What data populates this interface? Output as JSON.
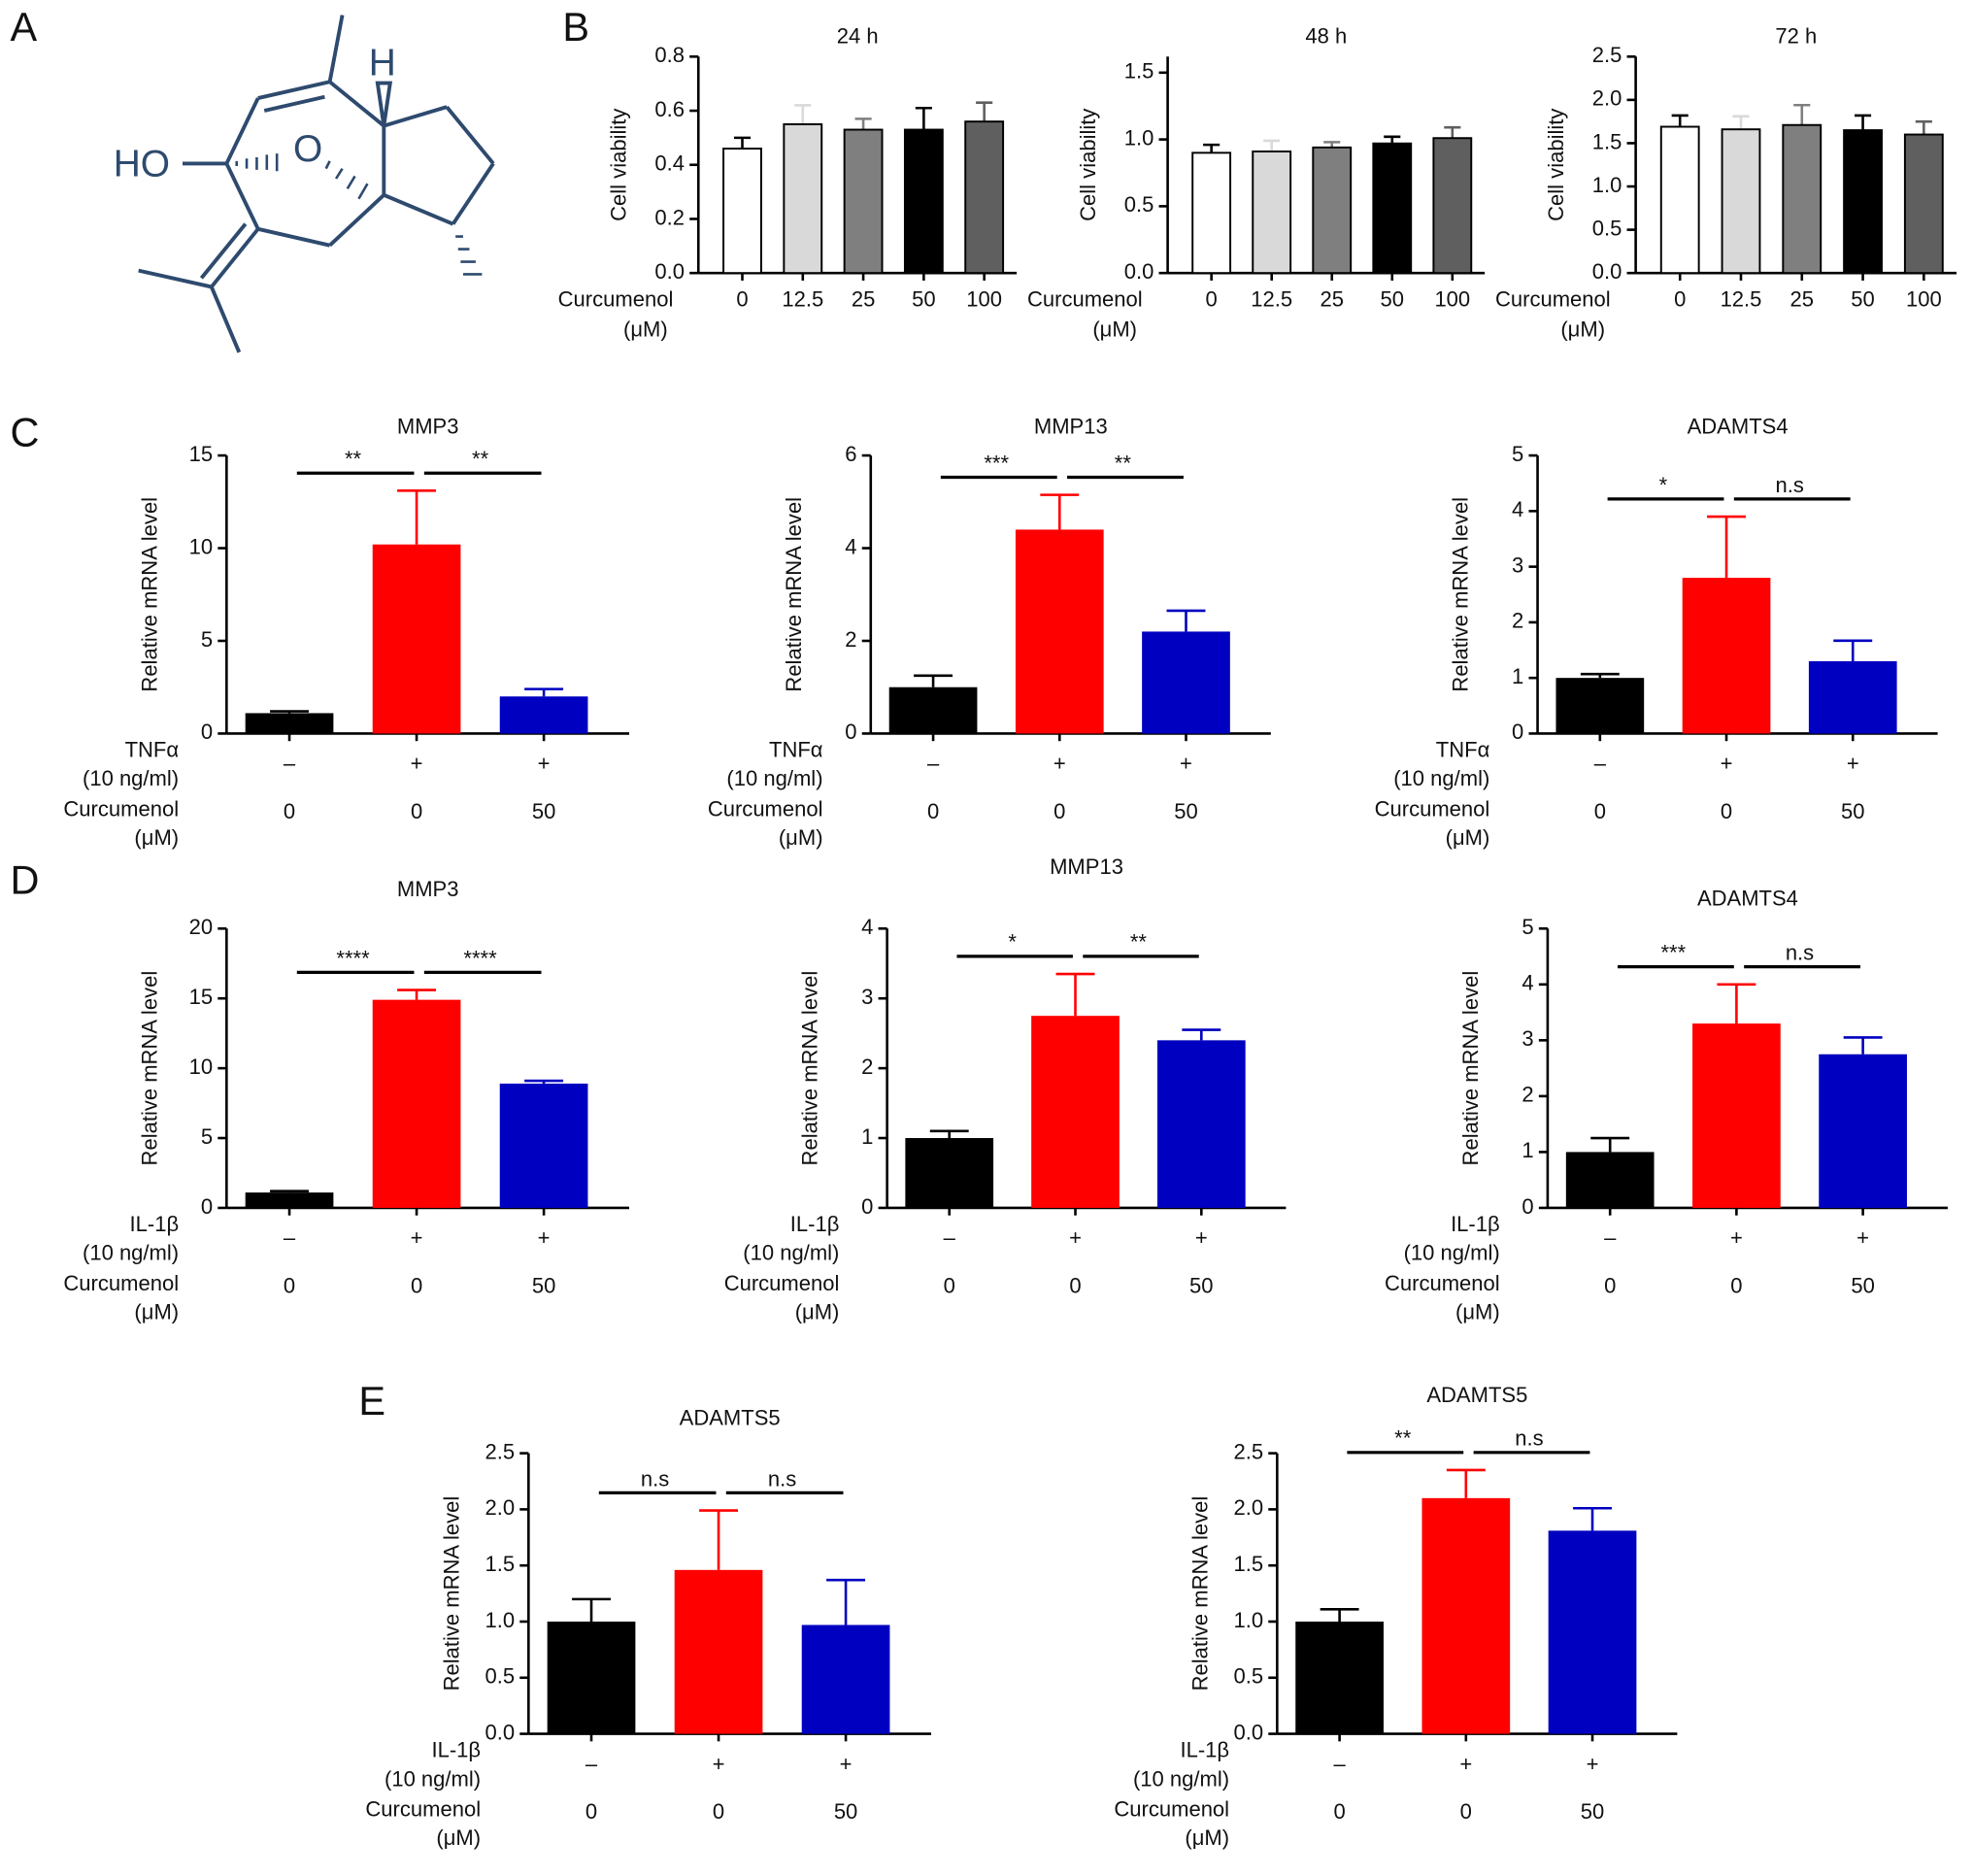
{
  "panel_labels": [
    "A",
    "B",
    "C",
    "D",
    "E"
  ],
  "structure": {
    "labels": [
      "HO",
      "O",
      "H"
    ]
  },
  "chart_data": [
    {
      "type": "bar",
      "title": "24 h",
      "ylabel": "Cell viability",
      "xlabel": [
        "Curcumenol",
        "(μM)"
      ],
      "categories": [
        "0",
        "12.5",
        "25",
        "50",
        "100"
      ],
      "values": [
        0.46,
        0.55,
        0.53,
        0.53,
        0.56
      ],
      "errors": [
        0.04,
        0.07,
        0.04,
        0.08,
        0.07
      ],
      "colors": [
        "#ffffff",
        "#d9d9d9",
        "#7f7f7f",
        "#000000",
        "#5f5f5f"
      ],
      "bar_outline": true,
      "ylim": [
        0,
        0.8
      ],
      "yticks": [
        {
          "value": 0,
          "label": "0.0"
        },
        0.2,
        0.4,
        0.6,
        0.8
      ]
    },
    {
      "type": "bar",
      "title": "48 h",
      "ylabel": "Cell viability",
      "xlabel": [
        "Curcumenol",
        "(μM)"
      ],
      "categories": [
        "0",
        "12.5",
        "25",
        "50",
        "100"
      ],
      "values": [
        0.9,
        0.91,
        0.94,
        0.97,
        1.01
      ],
      "errors": [
        0.06,
        0.08,
        0.04,
        0.05,
        0.08
      ],
      "colors": [
        "#ffffff",
        "#d9d9d9",
        "#7f7f7f",
        "#000000",
        "#5f5f5f"
      ],
      "bar_outline": true,
      "ylim": [
        0,
        1.62
      ],
      "yticks": [
        {
          "value": 0,
          "label": "0.0"
        },
        0.5,
        {
          "value": 1,
          "label": "1.0"
        },
        1.5
      ]
    },
    {
      "type": "bar",
      "title": "72 h",
      "ylabel": "Cell viability",
      "xlabel": [
        "Curcumenol",
        "(μM)"
      ],
      "categories": [
        "0",
        "12.5",
        "25",
        "50",
        "100"
      ],
      "values": [
        1.69,
        1.66,
        1.71,
        1.65,
        1.6
      ],
      "errors": [
        0.13,
        0.15,
        0.23,
        0.17,
        0.15
      ],
      "colors": [
        "#ffffff",
        "#d9d9d9",
        "#7f7f7f",
        "#000000",
        "#5f5f5f"
      ],
      "bar_outline": true,
      "ylim": [
        0,
        2.5
      ],
      "yticks": [
        {
          "value": 0,
          "label": "0.0"
        },
        0.5,
        {
          "value": 1,
          "label": "1.0"
        },
        1.5,
        {
          "value": 2,
          "label": "2.0"
        },
        2.5
      ]
    },
    {
      "type": "bar",
      "title": "MMP3",
      "ylabel": "Relative mRNA level",
      "row_labels": [
        [
          "TNFα",
          "(10 ng/ml)"
        ],
        [
          "Curcumenol",
          "(μM)"
        ]
      ],
      "rows": [
        [
          "–",
          "+",
          "+"
        ],
        [
          "0",
          "0",
          "50"
        ]
      ],
      "values": [
        1.1,
        10.2,
        2.0
      ],
      "errors": [
        0.1,
        2.9,
        0.4
      ],
      "colors": [
        "#000000",
        "#ff0000",
        "#0000c0"
      ],
      "ylim": [
        0,
        15
      ],
      "yticks": [
        0,
        5,
        10,
        15
      ],
      "annotations": [
        {
          "between": [
            0,
            1
          ],
          "text": "**"
        },
        {
          "between": [
            1,
            2
          ],
          "text": "**"
        }
      ]
    },
    {
      "type": "bar",
      "title": "MMP13",
      "ylabel": "Relative mRNA level",
      "row_labels": [
        [
          "TNFα",
          "(10 ng/ml)"
        ],
        [
          "Curcumenol",
          "(μM)"
        ]
      ],
      "rows": [
        [
          "–",
          "+",
          "+"
        ],
        [
          "0",
          "0",
          "50"
        ]
      ],
      "values": [
        1.0,
        4.4,
        2.2
      ],
      "errors": [
        0.25,
        0.75,
        0.45
      ],
      "colors": [
        "#000000",
        "#ff0000",
        "#0000c0"
      ],
      "ylim": [
        0,
        6
      ],
      "yticks": [
        0,
        2,
        4,
        6
      ],
      "annotations": [
        {
          "between": [
            0,
            1
          ],
          "text": "***"
        },
        {
          "between": [
            1,
            2
          ],
          "text": "**"
        }
      ]
    },
    {
      "type": "bar",
      "title": "ADAMTS4",
      "ylabel": "Relative mRNA level",
      "row_labels": [
        [
          "TNFα",
          "(10 ng/ml)"
        ],
        [
          "Curcumenol",
          "(μM)"
        ]
      ],
      "rows": [
        [
          "–",
          "+",
          "+"
        ],
        [
          "0",
          "0",
          "50"
        ]
      ],
      "values": [
        1.0,
        2.8,
        1.3
      ],
      "errors": [
        0.07,
        1.1,
        0.37
      ],
      "colors": [
        "#000000",
        "#ff0000",
        "#0000c0"
      ],
      "ylim": [
        0,
        5
      ],
      "yticks": [
        0,
        1,
        2,
        3,
        4,
        5
      ],
      "annotations": [
        {
          "between": [
            0,
            1
          ],
          "text": "*"
        },
        {
          "between": [
            1,
            2
          ],
          "text": "n.s"
        }
      ]
    },
    {
      "type": "bar",
      "title": "MMP3",
      "ylabel": "Relative mRNA level",
      "row_labels": [
        [
          "IL-1β",
          "(10 ng/ml)"
        ],
        [
          "Curcumenol",
          "(μM)"
        ]
      ],
      "rows": [
        [
          "–",
          "+",
          "+"
        ],
        [
          "0",
          "0",
          "50"
        ]
      ],
      "values": [
        1.1,
        14.9,
        8.9
      ],
      "errors": [
        0.1,
        0.7,
        0.2
      ],
      "colors": [
        "#000000",
        "#ff0000",
        "#0000c0"
      ],
      "ylim": [
        0,
        20
      ],
      "yticks": [
        0,
        5,
        10,
        15,
        20
      ],
      "annotations": [
        {
          "between": [
            0,
            1
          ],
          "text": "****"
        },
        {
          "between": [
            1,
            2
          ],
          "text": "****"
        }
      ]
    },
    {
      "type": "bar",
      "title": "MMP13",
      "ylabel": "Relative mRNA level",
      "row_labels": [
        [
          "IL-1β",
          "(10 ng/ml)"
        ],
        [
          "Curcumenol",
          "(μM)"
        ]
      ],
      "rows": [
        [
          "–",
          "+",
          "+"
        ],
        [
          "0",
          "0",
          "50"
        ]
      ],
      "values": [
        1.0,
        2.75,
        2.4
      ],
      "errors": [
        0.1,
        0.6,
        0.15
      ],
      "colors": [
        "#000000",
        "#ff0000",
        "#0000c0"
      ],
      "ylim": [
        0,
        4
      ],
      "yticks": [
        0,
        1,
        2,
        3,
        4
      ],
      "annotations": [
        {
          "between": [
            0,
            1
          ],
          "text": "*"
        },
        {
          "between": [
            1,
            2
          ],
          "text": "**"
        }
      ]
    },
    {
      "type": "bar",
      "title": "ADAMTS4",
      "ylabel": "Relative mRNA level",
      "row_labels": [
        [
          "IL-1β",
          "(10 ng/ml)"
        ],
        [
          "Curcumenol",
          "(μM)"
        ]
      ],
      "rows": [
        [
          "–",
          "+",
          "+"
        ],
        [
          "0",
          "0",
          "50"
        ]
      ],
      "values": [
        1.0,
        3.3,
        2.75
      ],
      "errors": [
        0.25,
        0.7,
        0.3
      ],
      "colors": [
        "#000000",
        "#ff0000",
        "#0000c0"
      ],
      "ylim": [
        0,
        5
      ],
      "yticks": [
        0,
        1,
        2,
        3,
        4,
        5
      ],
      "annotations": [
        {
          "between": [
            0,
            1
          ],
          "text": "***"
        },
        {
          "between": [
            1,
            2
          ],
          "text": "n.s"
        }
      ]
    },
    {
      "type": "bar",
      "title": "ADAMTS5",
      "ylabel": "Relative mRNA level",
      "row_labels": [
        [
          "IL-1β",
          "(10 ng/ml)"
        ],
        [
          "Curcumenol",
          "(μM)"
        ]
      ],
      "rows": [
        [
          "–",
          "+",
          "+"
        ],
        [
          "0",
          "0",
          "50"
        ]
      ],
      "values": [
        1.0,
        1.46,
        0.97
      ],
      "errors": [
        0.2,
        0.53,
        0.4
      ],
      "colors": [
        "#000000",
        "#ff0000",
        "#0000c0"
      ],
      "ylim": [
        0,
        2.5
      ],
      "yticks": [
        {
          "value": 0,
          "label": "0.0"
        },
        0.5,
        {
          "value": 1,
          "label": "1.0"
        },
        1.5,
        {
          "value": 2,
          "label": "2.0"
        },
        2.5
      ],
      "annotations": [
        {
          "between": [
            0,
            1
          ],
          "text": "n.s"
        },
        {
          "between": [
            1,
            2
          ],
          "text": "n.s"
        }
      ]
    },
    {
      "type": "bar",
      "title": "ADAMTS5",
      "ylabel": "Relative mRNA level",
      "row_labels": [
        [
          "IL-1β",
          "(10 ng/ml)"
        ],
        [
          "Curcumenol",
          "(μM)"
        ]
      ],
      "rows": [
        [
          "–",
          "+",
          "+"
        ],
        [
          "0",
          "0",
          "50"
        ]
      ],
      "values": [
        1.0,
        2.1,
        1.81
      ],
      "errors": [
        0.11,
        0.25,
        0.2
      ],
      "colors": [
        "#000000",
        "#ff0000",
        "#0000c0"
      ],
      "ylim": [
        0,
        2.5
      ],
      "yticks": [
        {
          "value": 0,
          "label": "0.0"
        },
        0.5,
        {
          "value": 1,
          "label": "1.0"
        },
        1.5,
        {
          "value": 2,
          "label": "2.0"
        },
        2.5
      ],
      "annotations": [
        {
          "between": [
            0,
            1
          ],
          "text": "**"
        },
        {
          "between": [
            1,
            2
          ],
          "text": "n.s"
        }
      ]
    }
  ]
}
